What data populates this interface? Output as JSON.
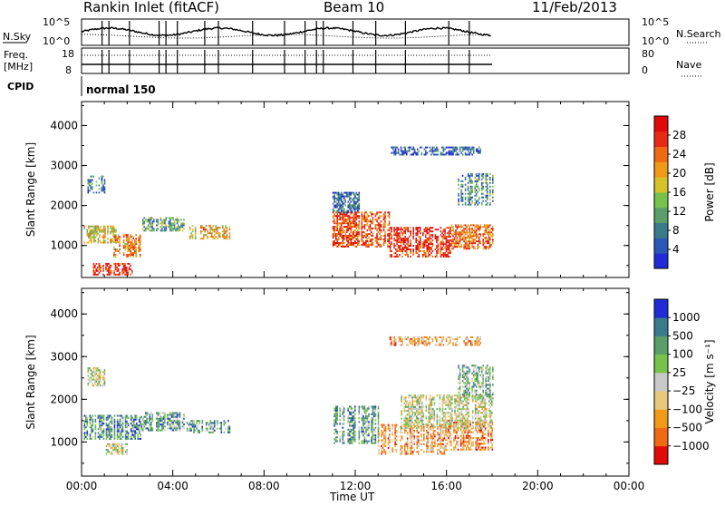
{
  "header": {
    "station": "Rankin Inlet (fitACF)",
    "beam": "Beam 10",
    "date": "11/Feb/2013"
  },
  "panels": {
    "nsky_label": "N.Sky",
    "nsky_ticks": [
      "10^5",
      "10^0"
    ],
    "nsearch_label": "N.Search",
    "freq_label": "Freq.",
    "freq_units": "[MHz]",
    "freq_ticks": [
      "18",
      "8"
    ],
    "nave_label": "Nave",
    "nave_ticks": [
      "80",
      "0"
    ],
    "cpid_label": "CPID",
    "cpid_value": "normal 150"
  },
  "colors": {
    "power_scale": [
      "#1f2bd6",
      "#2b58b4",
      "#3b7a8c",
      "#5a9e6a",
      "#77c24a",
      "#d6c22a",
      "#f09a1a",
      "#f06a14",
      "#e82a14",
      "#e00a0a"
    ],
    "velocity_scale": [
      "#e00a0a",
      "#f06a14",
      "#f09a1a",
      "#e8c87a",
      "#c8c8c8",
      "#77c24a",
      "#5a9e6a",
      "#3b7a8c",
      "#1f2bd6"
    ]
  },
  "chart_data": [
    {
      "type": "heatmap",
      "name": "power",
      "xlabel": "",
      "ylabel": "Slant Range [km]",
      "x_ticks": [
        "00:00",
        "04:00",
        "08:00",
        "12:00",
        "16:00",
        "20:00",
        "00:00"
      ],
      "y_ticks": [
        1000,
        2000,
        3000,
        4000
      ],
      "ylim": [
        200,
        4600
      ],
      "colorbar": {
        "label": "Power [dB]",
        "ticks": [
          "4",
          "8",
          "12",
          "16",
          "20",
          "24",
          "28"
        ]
      },
      "regions": [
        {
          "t0": 0.1,
          "t1": 1.5,
          "r0": 1050,
          "r1": 1500,
          "intensity": 0.55
        },
        {
          "t0": 1.4,
          "t1": 2.6,
          "r0": 700,
          "r1": 1250,
          "intensity": 0.7
        },
        {
          "t0": 2.6,
          "t1": 4.5,
          "r0": 1350,
          "r1": 1700,
          "intensity": 0.35
        },
        {
          "t0": 4.6,
          "t1": 6.5,
          "r0": 1150,
          "r1": 1500,
          "intensity": 0.6
        },
        {
          "t0": 0.5,
          "t1": 2.2,
          "r0": 250,
          "r1": 550,
          "intensity": 0.9
        },
        {
          "t0": 11.0,
          "t1": 13.5,
          "r0": 950,
          "r1": 1850,
          "intensity": 0.8
        },
        {
          "t0": 13.5,
          "t1": 16.2,
          "r0": 700,
          "r1": 1450,
          "intensity": 0.9
        },
        {
          "t0": 16.2,
          "t1": 18.0,
          "r0": 900,
          "r1": 1500,
          "intensity": 0.75
        },
        {
          "t0": 13.5,
          "t1": 17.5,
          "r0": 3250,
          "r1": 3450,
          "intensity": 0.15
        },
        {
          "t0": 0.2,
          "t1": 1.0,
          "r0": 2300,
          "r1": 2750,
          "intensity": 0.25
        },
        {
          "t0": 11.0,
          "t1": 12.2,
          "r0": 1800,
          "r1": 2300,
          "intensity": 0.2
        },
        {
          "t0": 16.5,
          "t1": 18.0,
          "r0": 2000,
          "r1": 2800,
          "intensity": 0.3
        }
      ]
    },
    {
      "type": "heatmap",
      "name": "velocity",
      "xlabel": "Time UT",
      "ylabel": "Slant Range [km]",
      "x_ticks": [
        "00:00",
        "04:00",
        "08:00",
        "12:00",
        "16:00",
        "20:00",
        "00:00"
      ],
      "y_ticks": [
        1000,
        2000,
        3000,
        4000
      ],
      "ylim": [
        200,
        4600
      ],
      "colorbar": {
        "label": "Velocity [m s⁻¹]",
        "ticks": [
          "1000",
          "500",
          "100",
          "25",
          "−25",
          "−100",
          "−500",
          "−1000"
        ]
      },
      "regions": [
        {
          "t0": 0.1,
          "t1": 2.6,
          "r0": 1050,
          "r1": 1600,
          "intensity": 0.75
        },
        {
          "t0": 2.6,
          "t1": 4.5,
          "r0": 1250,
          "r1": 1700,
          "intensity": 0.7
        },
        {
          "t0": 4.6,
          "t1": 6.5,
          "r0": 1200,
          "r1": 1500,
          "intensity": 0.72
        },
        {
          "t0": 0.2,
          "t1": 1.0,
          "r0": 2300,
          "r1": 2750,
          "intensity": 0.5
        },
        {
          "t0": 1.0,
          "t1": 2.0,
          "r0": 700,
          "r1": 950,
          "intensity": 0.5
        },
        {
          "t0": 11.0,
          "t1": 13.0,
          "r0": 950,
          "r1": 1850,
          "intensity": 0.72
        },
        {
          "t0": 13.0,
          "t1": 16.0,
          "r0": 700,
          "r1": 1400,
          "intensity": 0.3
        },
        {
          "t0": 16.0,
          "t1": 18.0,
          "r0": 800,
          "r1": 1500,
          "intensity": 0.25
        },
        {
          "t0": 14.0,
          "t1": 18.0,
          "r0": 1300,
          "r1": 2100,
          "intensity": 0.5
        },
        {
          "t0": 13.5,
          "t1": 17.5,
          "r0": 3250,
          "r1": 3450,
          "intensity": 0.3
        },
        {
          "t0": 16.5,
          "t1": 18.0,
          "r0": 2000,
          "r1": 2800,
          "intensity": 0.65
        }
      ]
    }
  ]
}
